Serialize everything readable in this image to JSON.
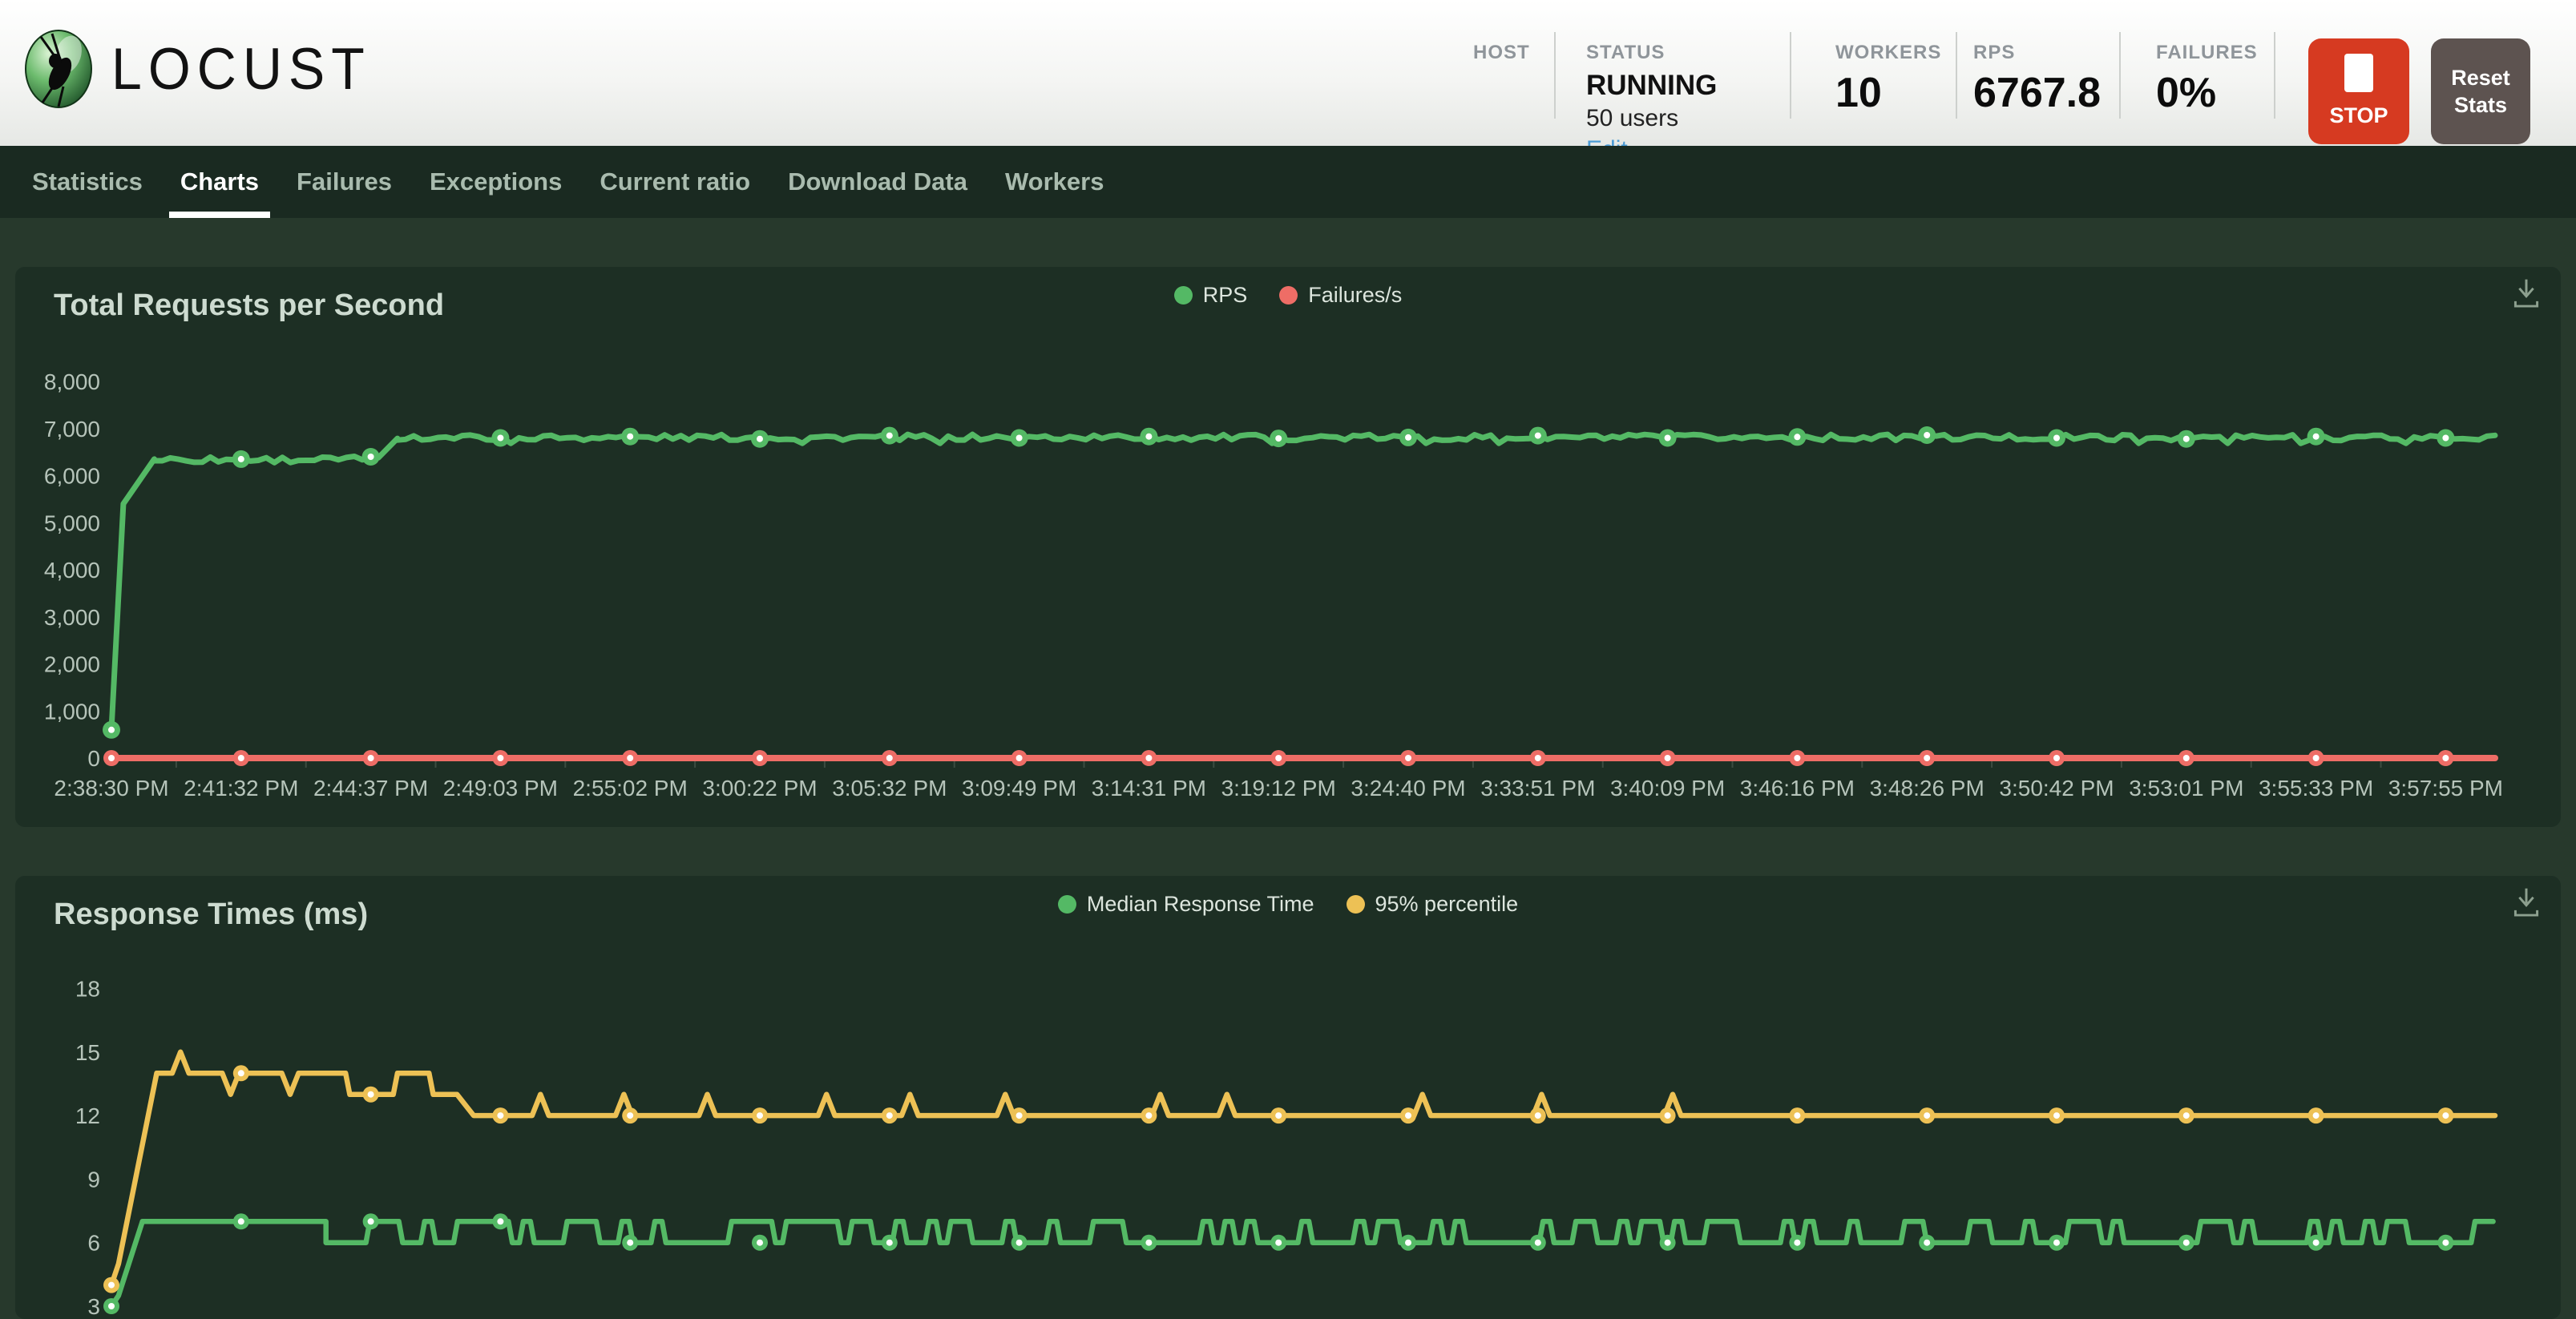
{
  "header": {
    "logo_text": "LOCUST",
    "stats": {
      "host_label": "HOST",
      "host_value": "",
      "status_label": "STATUS",
      "status_value": "RUNNING",
      "users_text": "50 users",
      "edit_label": "Edit",
      "workers_label": "WORKERS",
      "workers_value": "10",
      "rps_label": "RPS",
      "rps_value": "6767.8",
      "failures_label": "FAILURES",
      "failures_value": "0%"
    },
    "stop_button": "STOP",
    "reset_button": "Reset Stats"
  },
  "nav": {
    "tabs": [
      "Statistics",
      "Charts",
      "Failures",
      "Exceptions",
      "Current ratio",
      "Download Data",
      "Workers"
    ],
    "active": "Charts"
  },
  "colors": {
    "accent_green": "#54b965",
    "accent_red": "#ee6d66",
    "accent_yellow": "#edc155",
    "stop_button_bg": "#d63a21",
    "reset_button_bg": "#5d5350",
    "edit_link": "#4b9bd5",
    "nav_bg": "#1a2a21",
    "page_bg": "#27392c",
    "panel_bg": "#1d2f24",
    "axis_text": "#b6c4ba"
  },
  "chart_data": [
    {
      "type": "line",
      "title": "Total Requests per Second",
      "xlabel": "",
      "ylabel": "",
      "ylim": [
        0,
        8000
      ],
      "grid": false,
      "legend_position": "top-center",
      "x_labels_visible": true,
      "categories": [
        "2:38:30 PM",
        "2:41:32 PM",
        "2:44:37 PM",
        "2:49:03 PM",
        "2:55:02 PM",
        "3:00:22 PM",
        "3:05:32 PM",
        "3:09:49 PM",
        "3:14:31 PM",
        "3:19:12 PM",
        "3:24:40 PM",
        "3:33:51 PM",
        "3:40:09 PM",
        "3:46:16 PM",
        "3:48:26 PM",
        "3:50:42 PM",
        "3:53:01 PM",
        "3:55:33 PM",
        "3:57:55 PM"
      ],
      "y_ticks": [
        {
          "label": "0",
          "value": 0
        },
        {
          "label": "1,000",
          "value": 1000
        },
        {
          "label": "2,000",
          "value": 2000
        },
        {
          "label": "3,000",
          "value": 3000
        },
        {
          "label": "4,000",
          "value": 4000
        },
        {
          "label": "5,000",
          "value": 5000
        },
        {
          "label": "6,000",
          "value": 6000
        },
        {
          "label": "7,000",
          "value": 7000
        },
        {
          "label": "8,000",
          "value": 8000
        }
      ],
      "series": [
        {
          "name": "RPS",
          "color": "#54b965",
          "values": [
            600,
            6350,
            6400,
            6800,
            6830,
            6780,
            6850,
            6800,
            6830,
            6790,
            6810,
            6850,
            6800,
            6820,
            6860,
            6800,
            6780,
            6830,
            6800
          ],
          "segments": [
            {
              "mode": "ramp",
              "x0": 0,
              "x1": 0.005,
              "v0": 600,
              "v1": 5400
            },
            {
              "mode": "ramp",
              "x0": 0.005,
              "x1": 0.018,
              "v0": 5400,
              "v1": 6350
            },
            {
              "mode": "noise",
              "x0": 0.018,
              "x1": 0.112,
              "base": 6340,
              "amp": 70
            },
            {
              "mode": "ramp",
              "x0": 0.112,
              "x1": 0.12,
              "v0": 6380,
              "v1": 6790
            },
            {
              "mode": "noise",
              "x0": 0.12,
              "x1": 1,
              "base": 6810,
              "amp": 65
            }
          ]
        },
        {
          "name": "Failures/s",
          "color": "#ee6d66",
          "values": [
            0,
            0,
            0,
            0,
            0,
            0,
            0,
            0,
            0,
            0,
            0,
            0,
            0,
            0,
            0,
            0,
            0,
            0,
            0
          ],
          "segments": [
            {
              "mode": "flat",
              "x0": 0,
              "x1": 1,
              "base": 0
            }
          ]
        }
      ]
    },
    {
      "type": "line",
      "title": "Response Times (ms)",
      "xlabel": "",
      "ylabel": "",
      "ylim": [
        3,
        19
      ],
      "grid": false,
      "legend_position": "top-center",
      "x_labels_visible": false,
      "categories": [
        "2:38:30 PM",
        "2:41:32 PM",
        "2:44:37 PM",
        "2:49:03 PM",
        "2:55:02 PM",
        "3:00:22 PM",
        "3:05:32 PM",
        "3:09:49 PM",
        "3:14:31 PM",
        "3:19:12 PM",
        "3:24:40 PM",
        "3:33:51 PM",
        "3:40:09 PM",
        "3:46:16 PM",
        "3:48:26 PM",
        "3:50:42 PM",
        "3:53:01 PM",
        "3:55:33 PM",
        "3:57:55 PM"
      ],
      "y_ticks": [
        {
          "label": "3",
          "value": 3
        },
        {
          "label": "6",
          "value": 6
        },
        {
          "label": "9",
          "value": 9
        },
        {
          "label": "12",
          "value": 12
        },
        {
          "label": "15",
          "value": 15
        },
        {
          "label": "18",
          "value": 18
        }
      ],
      "series": [
        {
          "name": "95% percentile",
          "color": "#edc155",
          "values": [
            4,
            14,
            13,
            12,
            12,
            12,
            12,
            12,
            12,
            12,
            12,
            12,
            12,
            12,
            12,
            12,
            12,
            12,
            12
          ],
          "segments": [
            {
              "mode": "ramp",
              "x0": 0,
              "x1": 0.003,
              "v0": 4,
              "v1": 5
            },
            {
              "mode": "ramp",
              "x0": 0.003,
              "x1": 0.019,
              "v0": 5,
              "v1": 14
            },
            {
              "mode": "spikes",
              "x0": 0.019,
              "x1": 0.095,
              "base": 14,
              "spikes": [
                {
                  "f": 0.029,
                  "d": 1
                },
                {
                  "f": 0.05,
                  "d": -1
                },
                {
                  "f": 0.075,
                  "d": -1
                }
              ]
            },
            {
              "mode": "pulse",
              "x0": 0.095,
              "x1": 0.145,
              "lo": 13,
              "hi": 14,
              "duty": 0.5,
              "step": 0.005
            },
            {
              "mode": "ramp",
              "x0": 0.145,
              "x1": 0.152,
              "v0": 13,
              "v1": 12
            },
            {
              "mode": "spikes",
              "x0": 0.152,
              "x1": 1,
              "base": 12,
              "spikes": [
                {
                  "f": 0.18,
                  "d": 1
                },
                {
                  "f": 0.215,
                  "d": 1
                },
                {
                  "f": 0.25,
                  "d": 1
                },
                {
                  "f": 0.3,
                  "d": 1
                },
                {
                  "f": 0.335,
                  "d": 1
                },
                {
                  "f": 0.375,
                  "d": 1
                },
                {
                  "f": 0.44,
                  "d": 1
                },
                {
                  "f": 0.468,
                  "d": 1
                },
                {
                  "f": 0.55,
                  "d": 1
                },
                {
                  "f": 0.6,
                  "d": 1
                },
                {
                  "f": 0.655,
                  "d": 1
                }
              ]
            }
          ]
        },
        {
          "name": "Median Response Time",
          "color": "#54b965",
          "values": [
            3,
            7,
            7,
            7,
            6,
            6,
            6,
            6,
            6,
            6,
            6,
            6,
            6,
            6,
            6,
            6,
            6,
            6,
            6
          ],
          "segments": [
            {
              "mode": "ramp",
              "x0": 0,
              "x1": 0.003,
              "v0": 3,
              "v1": 3.5
            },
            {
              "mode": "ramp",
              "x0": 0.003,
              "x1": 0.013,
              "v0": 3.5,
              "v1": 7
            },
            {
              "mode": "flat",
              "x0": 0.013,
              "x1": 0.09,
              "base": 7
            },
            {
              "mode": "pulse",
              "x0": 0.09,
              "x1": 1,
              "lo": 6,
              "hi": 7,
              "duty": 0.4,
              "step": 0.0046
            }
          ]
        }
      ]
    }
  ]
}
